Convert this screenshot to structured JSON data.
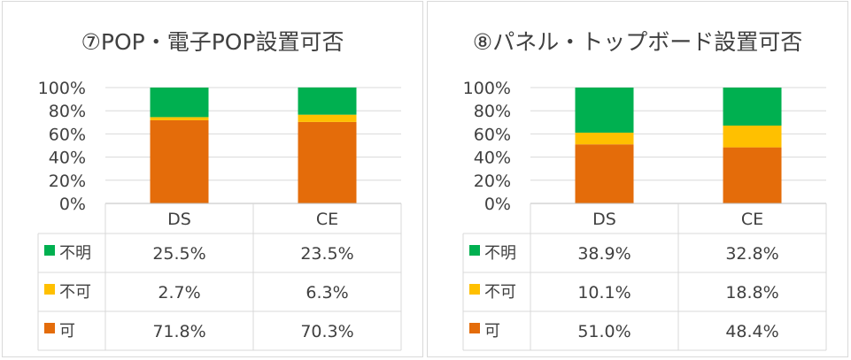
{
  "chart_data": [
    {
      "type": "bar",
      "stacked": true,
      "title": "⑦POP・電子POP設置可否",
      "categories": [
        "DS",
        "CE"
      ],
      "ylim": [
        0,
        100
      ],
      "y_ticks": [
        "0%",
        "20%",
        "40%",
        "60%",
        "80%",
        "100%"
      ],
      "series": [
        {
          "name": "可",
          "color": "#E46C0A",
          "values": [
            71.8,
            70.3
          ],
          "labels": [
            "71.8%",
            "70.3%"
          ]
        },
        {
          "name": "不可",
          "color": "#FFC000",
          "values": [
            2.7,
            6.3
          ],
          "labels": [
            "2.7%",
            "6.3%"
          ]
        },
        {
          "name": "不明",
          "color": "#00B050",
          "values": [
            25.5,
            23.5
          ],
          "labels": [
            "25.5%",
            "23.5%"
          ]
        }
      ],
      "table_order": [
        "不明",
        "不可",
        "可"
      ]
    },
    {
      "type": "bar",
      "stacked": true,
      "title": "⑧パネル・トップボード設置可否",
      "categories": [
        "DS",
        "CE"
      ],
      "ylim": [
        0,
        100
      ],
      "y_ticks": [
        "0%",
        "20%",
        "40%",
        "60%",
        "80%",
        "100%"
      ],
      "series": [
        {
          "name": "可",
          "color": "#E46C0A",
          "values": [
            51.0,
            48.4
          ],
          "labels": [
            "51.0%",
            "48.4%"
          ]
        },
        {
          "name": "不可",
          "color": "#FFC000",
          "values": [
            10.1,
            18.8
          ],
          "labels": [
            "10.1%",
            "18.8%"
          ]
        },
        {
          "name": "不明",
          "color": "#00B050",
          "values": [
            38.9,
            32.8
          ],
          "labels": [
            "38.9%",
            "32.8%"
          ]
        }
      ],
      "table_order": [
        "不明",
        "不可",
        "可"
      ]
    }
  ]
}
